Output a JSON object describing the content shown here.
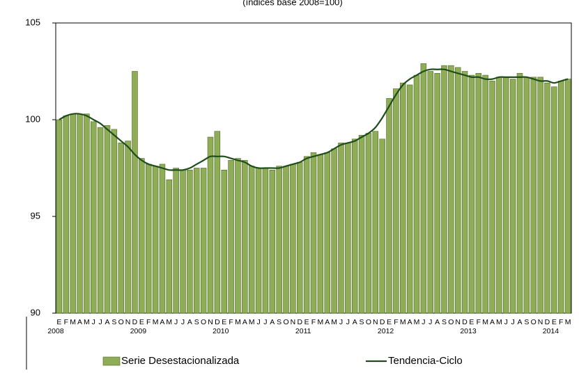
{
  "chart_data": {
    "type": "bar",
    "subtitle": "(índices base 2008=100)",
    "categories": [
      "E",
      "F",
      "M",
      "A",
      "M",
      "J",
      "J",
      "A",
      "S",
      "O",
      "N",
      "D",
      "E",
      "F",
      "M",
      "A",
      "M",
      "J",
      "J",
      "A",
      "S",
      "O",
      "N",
      "D",
      "E",
      "F",
      "M",
      "A",
      "M",
      "J",
      "J",
      "A",
      "S",
      "O",
      "N",
      "D",
      "E",
      "F",
      "M",
      "A",
      "M",
      "J",
      "J",
      "A",
      "S",
      "O",
      "N",
      "D",
      "E",
      "F",
      "M",
      "A",
      "M",
      "J",
      "J",
      "A",
      "S",
      "O",
      "N",
      "D",
      "E",
      "F",
      "M",
      "A",
      "M",
      "J",
      "J",
      "A",
      "S",
      "O",
      "N",
      "D",
      "E",
      "F",
      "M"
    ],
    "years": [
      "2008",
      "2009",
      "2010",
      "2011",
      "2012",
      "2013",
      "2014"
    ],
    "series": [
      {
        "name": "Serie Desestacionalizada",
        "type": "bar",
        "color": "#8fac56",
        "values": [
          100.0,
          100.2,
          100.3,
          100.3,
          100.3,
          99.9,
          99.6,
          99.7,
          99.5,
          98.8,
          98.9,
          102.5,
          98.0,
          97.7,
          97.6,
          97.7,
          96.9,
          97.5,
          97.4,
          97.4,
          97.5,
          97.5,
          99.1,
          99.4,
          97.4,
          97.9,
          98.0,
          97.9,
          97.6,
          97.5,
          97.5,
          97.4,
          97.6,
          97.6,
          97.7,
          97.8,
          98.1,
          98.3,
          98.2,
          98.3,
          98.5,
          98.8,
          98.8,
          99.0,
          99.2,
          99.3,
          99.4,
          99.0,
          101.1,
          101.6,
          101.9,
          101.8,
          102.3,
          102.9,
          102.5,
          102.4,
          102.8,
          102.8,
          102.7,
          102.5,
          102.3,
          102.4,
          102.3,
          102.0,
          102.2,
          102.2,
          102.1,
          102.4,
          102.2,
          102.2,
          102.2,
          101.9,
          101.7,
          102.0,
          102.1
        ]
      },
      {
        "name": "Tendencia-Ciclo",
        "type": "line",
        "color": "#1e4d1a",
        "values": [
          100.0,
          100.2,
          100.3,
          100.3,
          100.2,
          100.0,
          99.8,
          99.5,
          99.2,
          98.9,
          98.6,
          98.2,
          97.9,
          97.7,
          97.6,
          97.5,
          97.4,
          97.4,
          97.4,
          97.5,
          97.7,
          97.9,
          98.1,
          98.1,
          98.1,
          98.0,
          97.9,
          97.8,
          97.6,
          97.5,
          97.5,
          97.5,
          97.5,
          97.6,
          97.7,
          97.8,
          98.0,
          98.1,
          98.2,
          98.3,
          98.5,
          98.7,
          98.8,
          98.9,
          99.1,
          99.3,
          99.6,
          100.1,
          100.7,
          101.3,
          101.8,
          102.1,
          102.3,
          102.5,
          102.6,
          102.6,
          102.6,
          102.5,
          102.4,
          102.3,
          102.2,
          102.2,
          102.1,
          102.1,
          102.2,
          102.2,
          102.2,
          102.2,
          102.2,
          102.1,
          102.0,
          102.0,
          101.9,
          102.0,
          102.1
        ]
      }
    ],
    "ylim": [
      90,
      105
    ],
    "yticks": [
      90,
      95,
      100,
      105
    ]
  }
}
